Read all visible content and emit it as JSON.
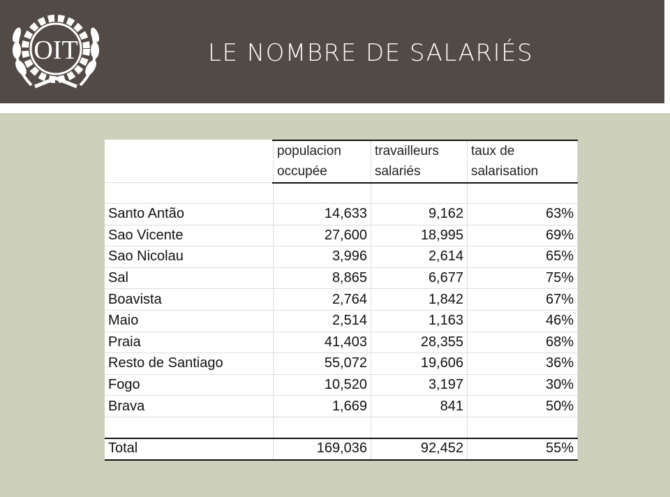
{
  "header": {
    "logo_text": "OIT",
    "title": "LE NOMBRE DE SALARIÉS"
  },
  "table": {
    "columns": [
      [
        "populacion",
        "occupée"
      ],
      [
        "travailleurs",
        "salariés"
      ],
      [
        "taux de",
        "salarisation"
      ]
    ],
    "rows": [
      [
        "Santo Antão",
        "14,633",
        "9,162",
        "63%"
      ],
      [
        "Sao Vicente",
        "27,600",
        "18,995",
        "69%"
      ],
      [
        "Sao Nicolau",
        "3,996",
        "2,614",
        "65%"
      ],
      [
        "Sal",
        "8,865",
        "6,677",
        "75%"
      ],
      [
        "Boavista",
        "2,764",
        "1,842",
        "67%"
      ],
      [
        "Maio",
        "2,514",
        "1,163",
        "46%"
      ],
      [
        "Praia",
        "41,403",
        "28,355",
        "68%"
      ],
      [
        "Resto de Santiago",
        "55,072",
        "19,606",
        "36%"
      ],
      [
        "Fogo",
        "10,520",
        "3,197",
        "30%"
      ],
      [
        "Brava",
        "1,669",
        "841",
        "50%"
      ]
    ],
    "total": [
      "Total",
      "169,036",
      "92,452",
      "55%"
    ]
  }
}
